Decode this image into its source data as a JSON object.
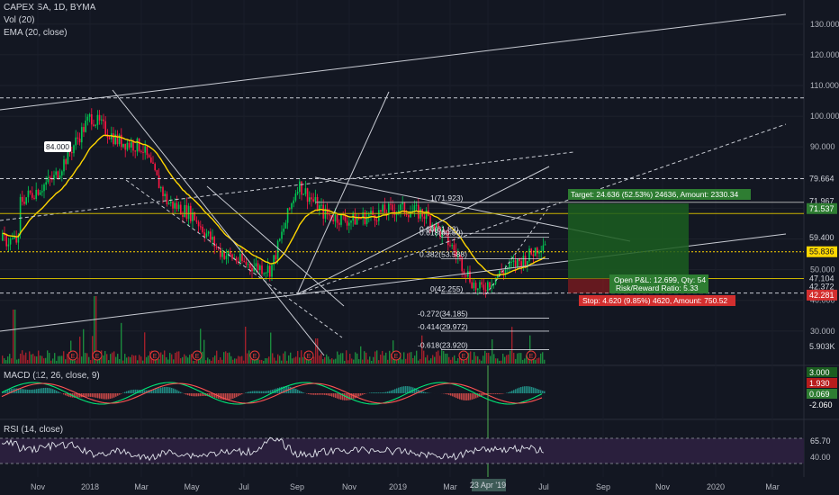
{
  "header": {
    "symbol_line": "CAPEX SA, 1D, BYMA",
    "indicator_vol": "Vol (20)",
    "indicator_ema": "EMA (20, close)"
  },
  "panes": {
    "macd_title": "MACD (12, 26, close, 9)",
    "rsi_title": "RSI (14, close)"
  },
  "colors": {
    "background": "#131722",
    "up": "#00c853",
    "down": "#ff1744",
    "ema": "#ffd600",
    "target_box": "#1b5e20",
    "stop_box": "#b71c1c",
    "rsi_band": "#2a1f3d"
  },
  "annotations": {
    "callout": "84.000",
    "target": "Target: 24.636 (52.53%) 24636, Amount: 2330.34",
    "open_pnl": "Open P&L: 12.699, Qty: 54",
    "risk_reward": "Risk/Reward Ratio: 5.33",
    "stop": "Stop: 4.620 (9.85%) 4620, Amount: 750.52"
  },
  "fib_labels": [
    "1(71.923)",
    "0.66(61.83)",
    "0.618(60.59)",
    "0.382(53.588)",
    "0(42.255)",
    "-0.272(34.185)",
    "-0.414(29.972)",
    "-0.618(23.920)"
  ],
  "chart_data": {
    "type": "candlestick",
    "title": "CAPEX SA, 1D, BYMA",
    "x_ticks": [
      "Nov",
      "2018",
      "Mar",
      "May",
      "Jul",
      "Sep",
      "Nov",
      "2019",
      "Mar",
      "23 Apr '19",
      "Jul",
      "Sep",
      "Nov",
      "2020",
      "Mar"
    ],
    "price_axis_ticks": [
      130.0,
      120.0,
      110.0,
      100.0,
      90.0,
      80.0,
      70.0,
      60.0,
      50.0,
      40.0,
      30.0
    ],
    "price_axis_labels": [
      "130.000",
      "120.000",
      "110.000",
      "100.000",
      "90.000",
      "79.664",
      "71.967",
      "71.537",
      "59.400",
      "55.836",
      "50.000",
      "47.104",
      "42.372",
      "42.281",
      "30.000",
      "5.903K"
    ],
    "key_levels": {
      "high_dashed": 105.986,
      "upper_level": 79.664,
      "target_line": 71.967,
      "target_entry": 71.537,
      "last_close": 59.4,
      "ema_value": 55.836,
      "entry": 47.104,
      "support": 42.372,
      "stop": 42.281
    },
    "price_path": [
      {
        "t": "Nov 2017",
        "close": 72
      },
      {
        "t": "Dec 2017",
        "close": 80
      },
      {
        "t": "Jan 2018",
        "close": 100
      },
      {
        "t": "Feb 2018",
        "close": 92
      },
      {
        "t": "Mar 2018",
        "close": 90
      },
      {
        "t": "Apr 2018",
        "close": 72
      },
      {
        "t": "May 2018",
        "close": 68
      },
      {
        "t": "Jun 2018",
        "close": 56
      },
      {
        "t": "Jul 2018",
        "close": 52
      },
      {
        "t": "Aug 2018",
        "close": 50
      },
      {
        "t": "Sep 2018",
        "close": 78
      },
      {
        "t": "Oct 2018",
        "close": 68
      },
      {
        "t": "Nov 2018",
        "close": 66
      },
      {
        "t": "Dec 2018",
        "close": 68
      },
      {
        "t": "Jan 2019",
        "close": 70
      },
      {
        "t": "Feb 2019",
        "close": 68
      },
      {
        "t": "Mar 2019",
        "close": 58
      },
      {
        "t": "Apr 2019",
        "close": 43
      },
      {
        "t": "May 2019",
        "close": 50
      },
      {
        "t": "Jun 2019",
        "close": 54
      },
      {
        "t": "Jul 2019",
        "close": 59.4
      }
    ],
    "macd_axis_labels": [
      "3.000",
      "1.930",
      "0.069",
      "-2.060"
    ],
    "rsi_axis_labels": [
      "65.70",
      "40.00"
    ],
    "rsi_band": [
      30,
      70
    ]
  }
}
